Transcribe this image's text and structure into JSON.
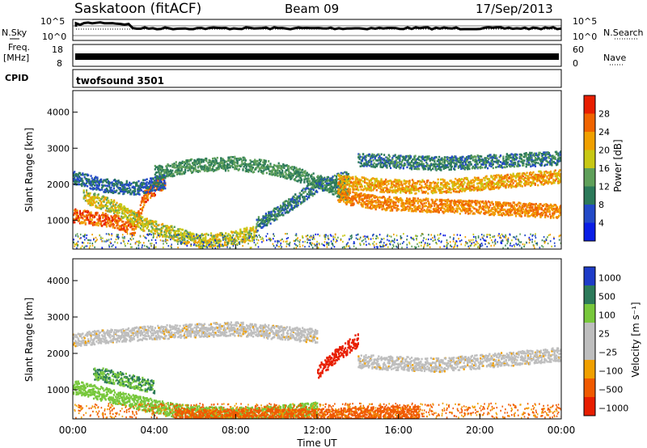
{
  "header": {
    "station": "Saskatoon (fitACF)",
    "beam": "Beam 09",
    "date": "17/Sep/2013"
  },
  "top_panels": {
    "nsky": {
      "label": "N.Sky",
      "right_label": "N.Search",
      "left_ticks": [
        "10^5",
        "10^0"
      ],
      "right_ticks": [
        "10^5",
        "10^0"
      ]
    },
    "freq": {
      "label_line1": "Freq.",
      "label_line2": "[MHz]",
      "left_ticks": [
        "18",
        "8"
      ],
      "right_ticks": [
        "60",
        "0"
      ],
      "right_label": "Nave"
    },
    "cpid": {
      "label": "CPID",
      "value": "twofsound 3501"
    }
  },
  "colors": {
    "power_scale": [
      "#0a1ee6",
      "#234ac8",
      "#2c7a5a",
      "#5fa05a",
      "#c8c814",
      "#f0a000",
      "#f06400",
      "#e81e00"
    ],
    "velocity_scale": [
      "#1e3cc8",
      "#2c7a5a",
      "#78c83c",
      "#bebebe",
      "#bebebe",
      "#f0a000",
      "#f05a00",
      "#e81e00"
    ]
  },
  "chart_data": [
    {
      "type": "heatmap",
      "name": "Power",
      "ylabel": "Slant Range [km]",
      "yticks": [
        "1000",
        "2000",
        "3000",
        "4000"
      ],
      "ylim": [
        200,
        4600
      ],
      "xlim": [
        0,
        24
      ],
      "colorbar": {
        "label": "Power [dB]",
        "ticks": [
          "4",
          "8",
          "12",
          "16",
          "20",
          "24",
          "28"
        ],
        "range": [
          0,
          32
        ]
      },
      "bands": [
        {
          "x": [
            0.0,
            2.0,
            3.0,
            3.5,
            4.5
          ],
          "range_km": [
            1150,
            1000,
            800,
            1700,
            2100
          ],
          "level": 26
        },
        {
          "x": [
            0.5,
            2.0,
            3.5,
            5.0,
            6.0,
            7.5,
            9.0
          ],
          "range_km": [
            1700,
            1400,
            900,
            650,
            450,
            500,
            700
          ],
          "level": 18
        },
        {
          "x": [
            4.0,
            6.0,
            8.0,
            9.5,
            11.0,
            12.5,
            13.5
          ],
          "range_km": [
            2350,
            2550,
            2600,
            2500,
            2300,
            2000,
            1700
          ],
          "level": 12
        },
        {
          "x": [
            0.0,
            1.5,
            3.0,
            4.5
          ],
          "range_km": [
            2200,
            2000,
            1900,
            2100
          ],
          "level": 8
        },
        {
          "x": [
            9.0,
            10.5,
            12.0,
            13.5
          ],
          "range_km": [
            900,
            1400,
            2000,
            2200
          ],
          "level": 10
        },
        {
          "x": [
            13.0,
            15.0,
            17.0,
            19.0,
            21.0,
            23.0,
            24.0
          ],
          "range_km": [
            1700,
            1500,
            1450,
            1400,
            1350,
            1300,
            1250
          ],
          "level": 24
        },
        {
          "x": [
            13.0,
            15.0,
            17.0,
            19.0,
            21.0,
            23.0,
            24.0
          ],
          "range_km": [
            2100,
            2000,
            1950,
            2000,
            2100,
            2200,
            2250
          ],
          "level": 22
        },
        {
          "x": [
            14.0,
            16.0,
            18.0,
            20.0,
            22.0,
            24.0
          ],
          "range_km": [
            2700,
            2650,
            2600,
            2650,
            2700,
            2750
          ],
          "level": 10
        }
      ]
    },
    {
      "type": "heatmap",
      "name": "Velocity",
      "ylabel": "Slant Range [km]",
      "yticks": [
        "1000",
        "2000",
        "3000",
        "4000"
      ],
      "ylim": [
        200,
        4600
      ],
      "xlim": [
        0,
        24
      ],
      "xticks": [
        "00:00",
        "04:00",
        "08:00",
        "12:00",
        "16:00",
        "20:00",
        "00:00"
      ],
      "xlabel": "Time UT",
      "colorbar": {
        "label": "Velocity [m s⁻¹]",
        "ticks": [
          "1000",
          "500",
          "100",
          "25",
          "−25",
          "−100",
          "−500",
          "−1000"
        ]
      },
      "bands": [
        {
          "x": [
            0.0,
            1.5,
            3.0,
            4.5,
            6.0,
            8.0,
            10.0,
            12.0
          ],
          "range_km": [
            1100,
            900,
            700,
            500,
            400,
            350,
            400,
            500
          ],
          "velocity": 150
        },
        {
          "x": [
            1.0,
            2.5,
            4.0
          ],
          "range_km": [
            1500,
            1300,
            1100
          ],
          "velocity": 500
        },
        {
          "x": [
            0.0,
            2.0,
            4.0,
            6.0,
            8.0,
            10.0,
            12.0
          ],
          "range_km": [
            2400,
            2500,
            2600,
            2650,
            2700,
            2600,
            2500
          ],
          "velocity": 0
        },
        {
          "x": [
            12.0,
            13.0,
            14.0
          ],
          "range_km": [
            1500,
            2000,
            2400
          ],
          "velocity": -700
        },
        {
          "x": [
            14.0,
            16.0,
            18.0,
            20.0,
            22.0,
            24.0
          ],
          "range_km": [
            1800,
            1750,
            1700,
            1800,
            1900,
            2000
          ],
          "velocity": 0
        },
        {
          "x": [
            5.0,
            8.0,
            11.0,
            14.0,
            17.0
          ],
          "range_km": [
            300,
            300,
            300,
            350,
            400
          ],
          "velocity": -150
        }
      ]
    }
  ]
}
